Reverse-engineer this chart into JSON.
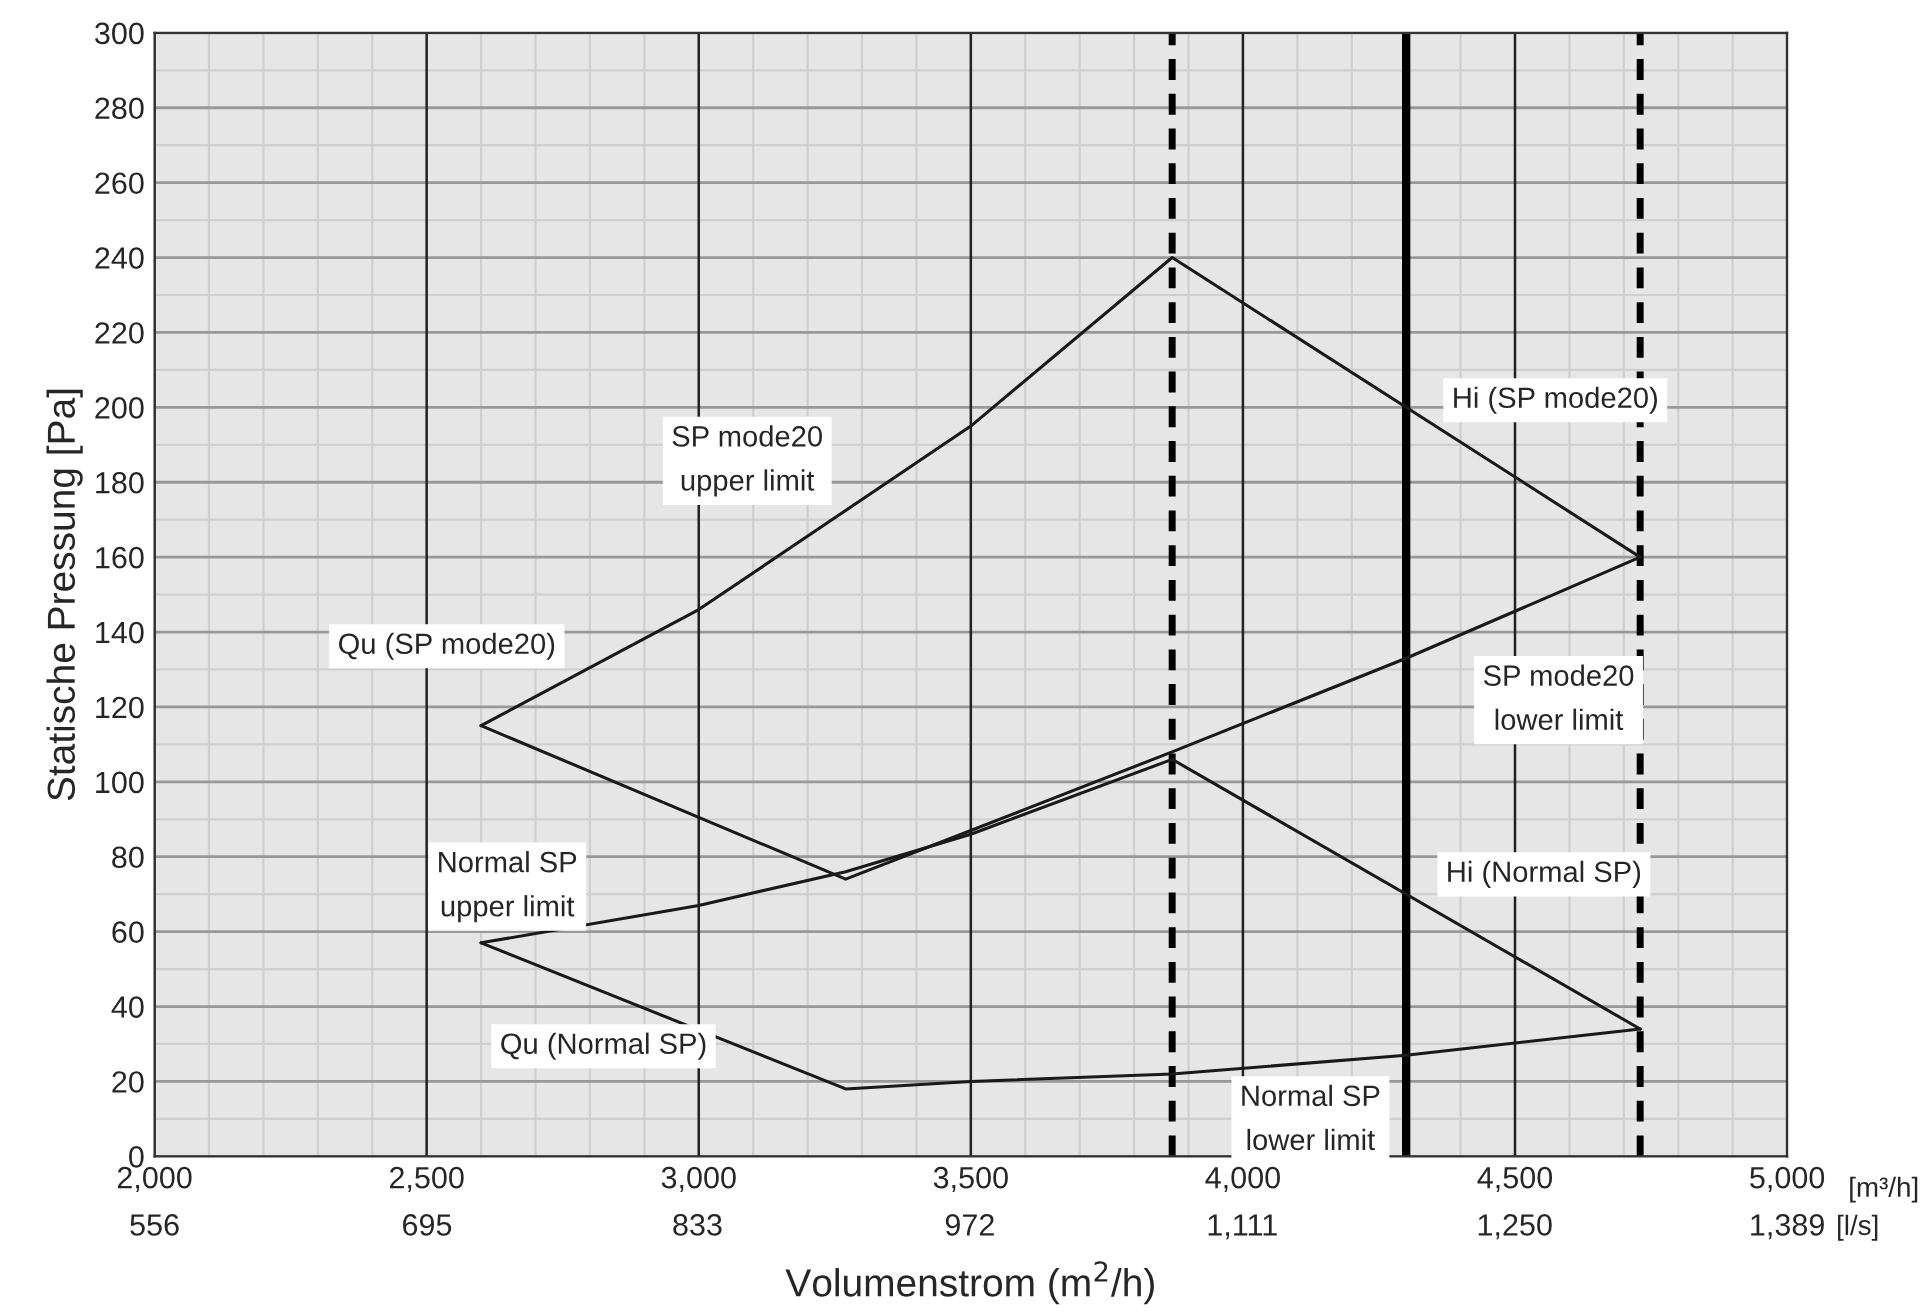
{
  "chart_data": {
    "type": "line",
    "xlabel": "Volumenstrom (m$^{2}$/h)",
    "ylabel": "Statische Pressung [Pa]",
    "x2label": "[l/s]",
    "xlim": [
      2000,
      5000
    ],
    "ylim": [
      0,
      300
    ],
    "xticks": [
      {
        "value": 2000,
        "label": "2,000"
      },
      {
        "value": 2500,
        "label": "2,500"
      },
      {
        "value": 3000,
        "label": "3,000"
      },
      {
        "value": 3500,
        "label": "3,500"
      },
      {
        "value": 4000,
        "label": "4,000"
      },
      {
        "value": 4500,
        "label": "4,500"
      },
      {
        "value": 5000,
        "label": "5,000"
      }
    ],
    "x2lim": [
      556,
      1389
    ],
    "x2ticks": [
      556,
      695,
      833,
      972,
      {
        "value": 1111,
        "label": "1,111"
      },
      {
        "value": 1250,
        "label": "1,250"
      },
      {
        "value": 1389,
        "label": "1,389"
      }
    ],
    "yticks": [
      0,
      20,
      40,
      60,
      80,
      100,
      120,
      140,
      160,
      180,
      200,
      220,
      240,
      260,
      280,
      300
    ],
    "grid": true,
    "marker": "none",
    "line_style": "solid",
    "series": [
      {
        "color": "#1a1a1a",
        "x": [
          2600,
          3000,
          3500,
          3870,
          4730
        ],
        "values": [
          115,
          146,
          195,
          240,
          160
        ]
      },
      {
        "color": "#1a1a1a",
        "x": [
          2600,
          3270,
          3500,
          3870,
          4300,
          4730
        ],
        "values": [
          115,
          74,
          87,
          108,
          133,
          160
        ]
      },
      {
        "color": "#1a1a1a",
        "x": [
          2600,
          3000,
          3270,
          3500,
          3870,
          4730
        ],
        "values": [
          57,
          67,
          76,
          86,
          106,
          34
        ]
      },
      {
        "color": "#1a1a1a",
        "x": [
          2600,
          3270,
          3500,
          3870,
          4300,
          4730
        ],
        "values": [
          57,
          18,
          20,
          22,
          27,
          34
        ]
      }
    ],
    "ref_lines": [
      {
        "axis": "x",
        "value": 3870,
        "color": "#000000",
        "line_style": "dashed"
      },
      {
        "axis": "x",
        "value": 4300,
        "color": "#000000",
        "line_style": "solid"
      },
      {
        "axis": "x",
        "value": 4730,
        "color": "#000000",
        "line_style": "dashed"
      }
    ],
    "annotations": [
      "SP mode20\nupper limit",
      "Hi (SP mode20)",
      "Qu (SP mode20)",
      "Normal SP\nupper limit",
      "Qu (Normal SP)",
      "SP mode20\nlower limit",
      "Hi (Normal SP)",
      "Normal SP\nlower limit",
      "[m³/h]"
    ]
  }
}
